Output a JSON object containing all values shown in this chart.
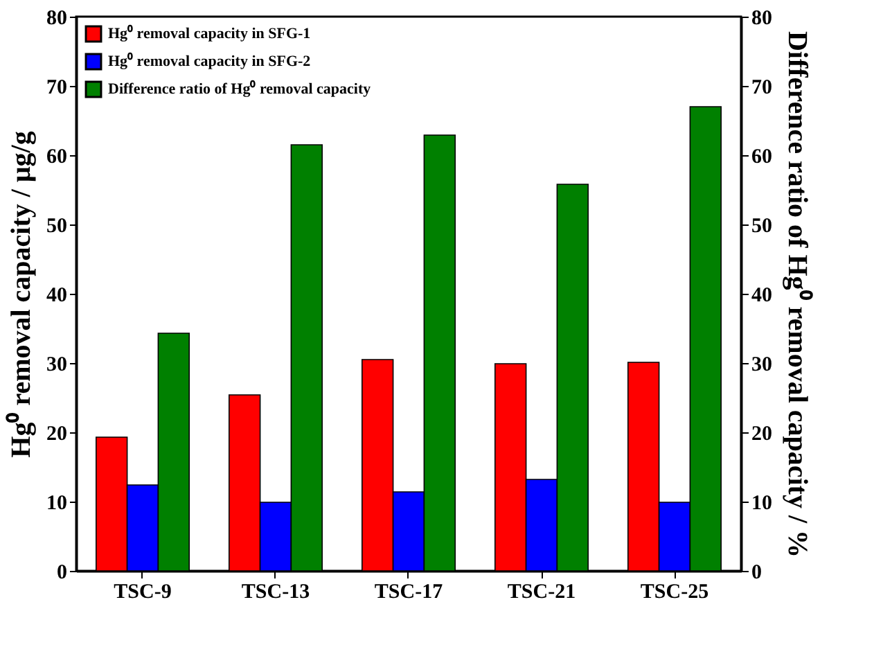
{
  "chart_data": {
    "type": "bar",
    "categories": [
      "TSC-9",
      "TSC-13",
      "TSC-17",
      "TSC-21",
      "TSC-25"
    ],
    "ylabel": "Hg⁰ removal capacity / μg/g",
    "y2label": "Difference ratio of Hg⁰ removal capacity / %",
    "ylim": [
      0,
      80
    ],
    "yticks": [
      0,
      10,
      20,
      30,
      40,
      50,
      60,
      70,
      80
    ],
    "y2lim": [
      0,
      80
    ],
    "y2ticks": [
      0,
      10,
      20,
      30,
      40,
      50,
      60,
      70,
      80
    ],
    "series": [
      {
        "name": "Hg⁰ removal capacity in SFG-1",
        "color": "#ff0000",
        "values": [
          19.3,
          25.4,
          30.5,
          29.9,
          30.1
        ]
      },
      {
        "name": "Hg⁰ removal capacity in SFG-2",
        "color": "#0000ff",
        "values": [
          12.4,
          9.9,
          11.4,
          13.2,
          9.9
        ]
      },
      {
        "name": "Difference ratio of Hg⁰ removal capacity",
        "color": "#008000",
        "axis": "y2",
        "values": [
          34.3,
          61.5,
          62.9,
          55.8,
          67.0
        ]
      }
    ],
    "legend": "top left",
    "grid": false
  }
}
